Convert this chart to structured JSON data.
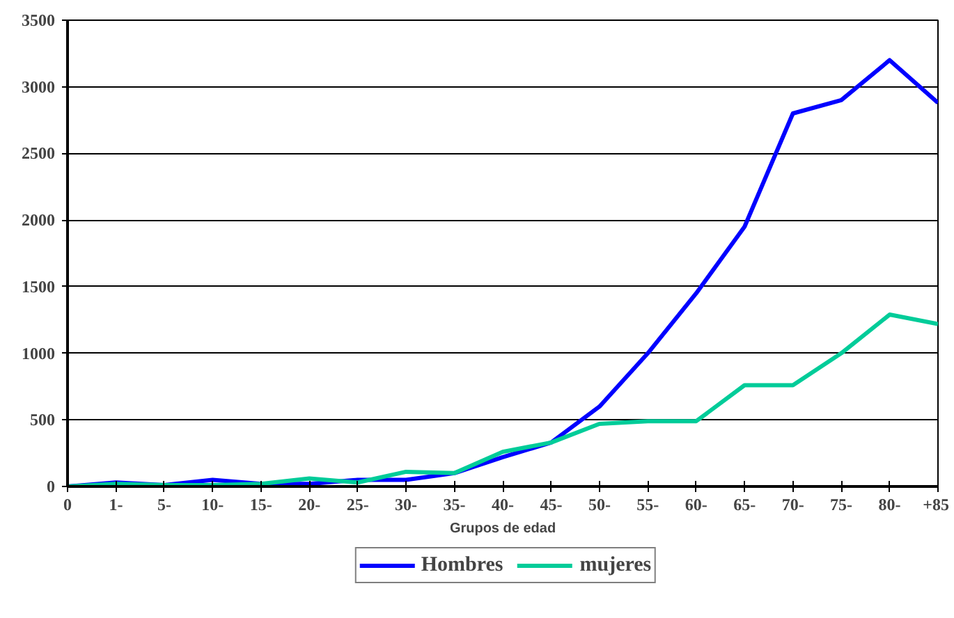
{
  "chart_data": {
    "type": "line",
    "xlabel": "Grupos de edad",
    "categories": [
      "0",
      "1-",
      "5-",
      "10-",
      "15-",
      "20-",
      "25-",
      "30-",
      "35-",
      "40-",
      "45-",
      "50-",
      "55-",
      "60-",
      "65-",
      "70-",
      "75-",
      "80-",
      "+85"
    ],
    "series": [
      {
        "name": "Hombres",
        "color": "#0000ff",
        "values": [
          0,
          30,
          10,
          50,
          20,
          20,
          50,
          50,
          100,
          220,
          330,
          600,
          1000,
          1450,
          1950,
          2800,
          2900,
          3200,
          2880
        ]
      },
      {
        "name": "mujeres",
        "color": "#00cc99",
        "values": [
          0,
          20,
          10,
          10,
          20,
          60,
          30,
          110,
          100,
          260,
          330,
          470,
          490,
          490,
          760,
          760,
          1000,
          1290,
          1220
        ]
      }
    ],
    "ylim": [
      0,
      3500
    ],
    "yticks": [
      0,
      500,
      1000,
      1500,
      2000,
      2500,
      3000,
      3500
    ],
    "grid": "y",
    "legend": "bottom",
    "marker": "none",
    "line_style": "solid"
  }
}
